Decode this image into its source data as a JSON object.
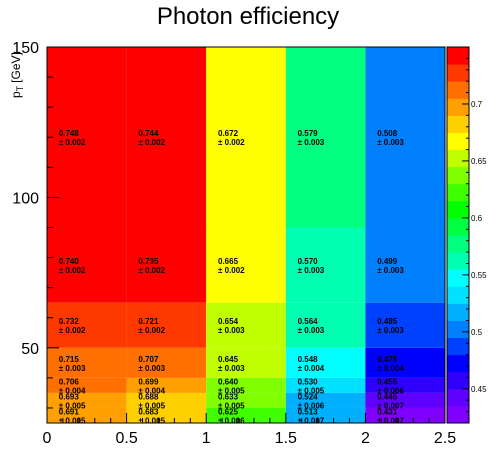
{
  "chart_data": {
    "type": "heatmap",
    "title": "Photon efficiency",
    "ylabel": "p_T [GeV]",
    "ylabel_main": "p",
    "ylabel_sub": "T",
    "ylabel_unit": "[GeV]",
    "xlabel": "",
    "x_edges": [
      0,
      0.5,
      1,
      1.5,
      2,
      2.5
    ],
    "y_edges": [
      25,
      30,
      35,
      40,
      50,
      65,
      90,
      150
    ],
    "xlim": [
      0,
      2.5
    ],
    "ylim": [
      25,
      150
    ],
    "x_ticks": [
      "0",
      "0.5",
      "1",
      "1.5",
      "2",
      "2.5"
    ],
    "y_ticks": [
      "50",
      "100",
      "150"
    ],
    "z_range": [
      0.42,
      0.75
    ],
    "z_ticks": [
      "0.45",
      "0.5",
      "0.55",
      "0.6",
      "0.65",
      "0.7"
    ],
    "colormap": [
      "#7f00ff",
      "#6000ff",
      "#3000ff",
      "#0000ff",
      "#0040ff",
      "#0080ff",
      "#00b0ff",
      "#00e0ff",
      "#00ffff",
      "#00ffb0",
      "#00ff80",
      "#00ff40",
      "#00ff00",
      "#40ff00",
      "#80ff00",
      "#c0ff00",
      "#ffff00",
      "#ffd000",
      "#ffa000",
      "#ff7000",
      "#ff3800",
      "#ff0000"
    ],
    "cells": [
      [
        {
          "v": 0.691,
          "e": "0.005"
        },
        {
          "v": 0.683,
          "e": "0.005"
        },
        {
          "v": 0.625,
          "e": "0.006"
        },
        {
          "v": 0.513,
          "e": "0.007"
        },
        {
          "v": 0.431,
          "e": "0.007"
        }
      ],
      [
        {
          "v": 0.693,
          "e": "0.005"
        },
        {
          "v": 0.688,
          "e": "0.005"
        },
        {
          "v": 0.633,
          "e": "0.005"
        },
        {
          "v": 0.524,
          "e": "0.006"
        },
        {
          "v": 0.445,
          "e": "0.007"
        }
      ],
      [
        {
          "v": 0.706,
          "e": "0.004"
        },
        {
          "v": 0.699,
          "e": "0.004"
        },
        {
          "v": 0.64,
          "e": "0.005"
        },
        {
          "v": 0.53,
          "e": "0.005"
        },
        {
          "v": 0.455,
          "e": "0.006"
        }
      ],
      [
        {
          "v": 0.715,
          "e": "0.003"
        },
        {
          "v": 0.707,
          "e": "0.003"
        },
        {
          "v": 0.645,
          "e": "0.003"
        },
        {
          "v": 0.548,
          "e": "0.004"
        },
        {
          "v": 0.475,
          "e": "0.004"
        }
      ],
      [
        {
          "v": 0.732,
          "e": "0.002"
        },
        {
          "v": 0.721,
          "e": "0.002"
        },
        {
          "v": 0.654,
          "e": "0.003"
        },
        {
          "v": 0.564,
          "e": "0.003"
        },
        {
          "v": 0.485,
          "e": "0.003"
        }
      ],
      [
        {
          "v": 0.74,
          "e": "0.002"
        },
        {
          "v": 0.735,
          "e": "0.002"
        },
        {
          "v": 0.665,
          "e": "0.002"
        },
        {
          "v": 0.57,
          "e": "0.003"
        },
        {
          "v": 0.499,
          "e": "0.003"
        }
      ],
      [
        {
          "v": 0.748,
          "e": "0.002"
        },
        {
          "v": 0.744,
          "e": "0.002"
        },
        {
          "v": 0.672,
          "e": "0.002"
        },
        {
          "v": 0.579,
          "e": "0.003"
        },
        {
          "v": 0.508,
          "e": "0.003"
        }
      ]
    ],
    "grid": false,
    "colorbar": "right"
  }
}
